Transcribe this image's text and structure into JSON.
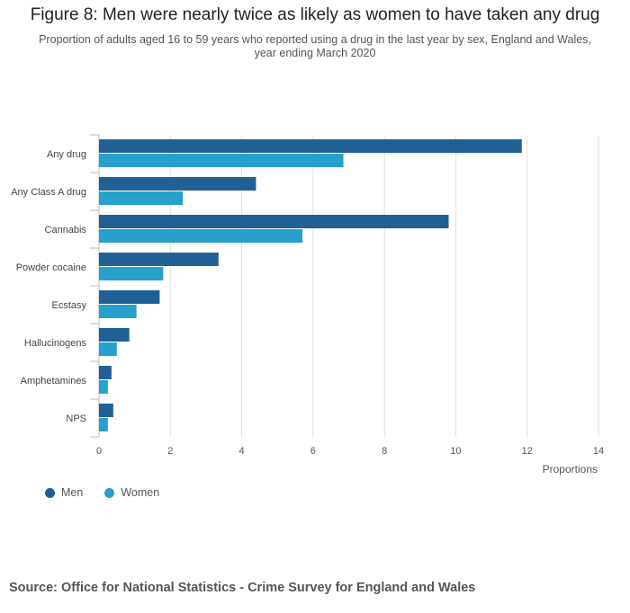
{
  "chart_data": {
    "type": "bar",
    "orientation": "horizontal",
    "title": "Figure 8: Men were nearly twice as likely as women to have taken any drug",
    "subtitle": "Proportion of adults aged 16 to 59 years who reported using a drug in the last year by sex, England and Wales, year ending March 2020",
    "categories": [
      "Any drug",
      "Any Class A drug",
      "Cannabis",
      "Powder cocaine",
      "Ecstasy",
      "Hallucinogens",
      "Amphetamines",
      "NPS"
    ],
    "series": [
      {
        "name": "Men",
        "color": "#206095",
        "values": [
          11.85,
          4.4,
          9.8,
          3.35,
          1.7,
          0.85,
          0.35,
          0.4
        ]
      },
      {
        "name": "Women",
        "color": "#27a0cc",
        "values": [
          6.85,
          2.35,
          5.7,
          1.8,
          1.05,
          0.5,
          0.25,
          0.25
        ]
      }
    ],
    "xlabel": "Proportions",
    "ylabel": "",
    "xlim": [
      0,
      14
    ],
    "xticks": [
      0,
      2,
      4,
      6,
      8,
      10,
      12,
      14
    ],
    "grid": true,
    "legend_position": "bottom-left"
  },
  "source": "Source: Office for National Statistics - Crime Survey for England and Wales"
}
